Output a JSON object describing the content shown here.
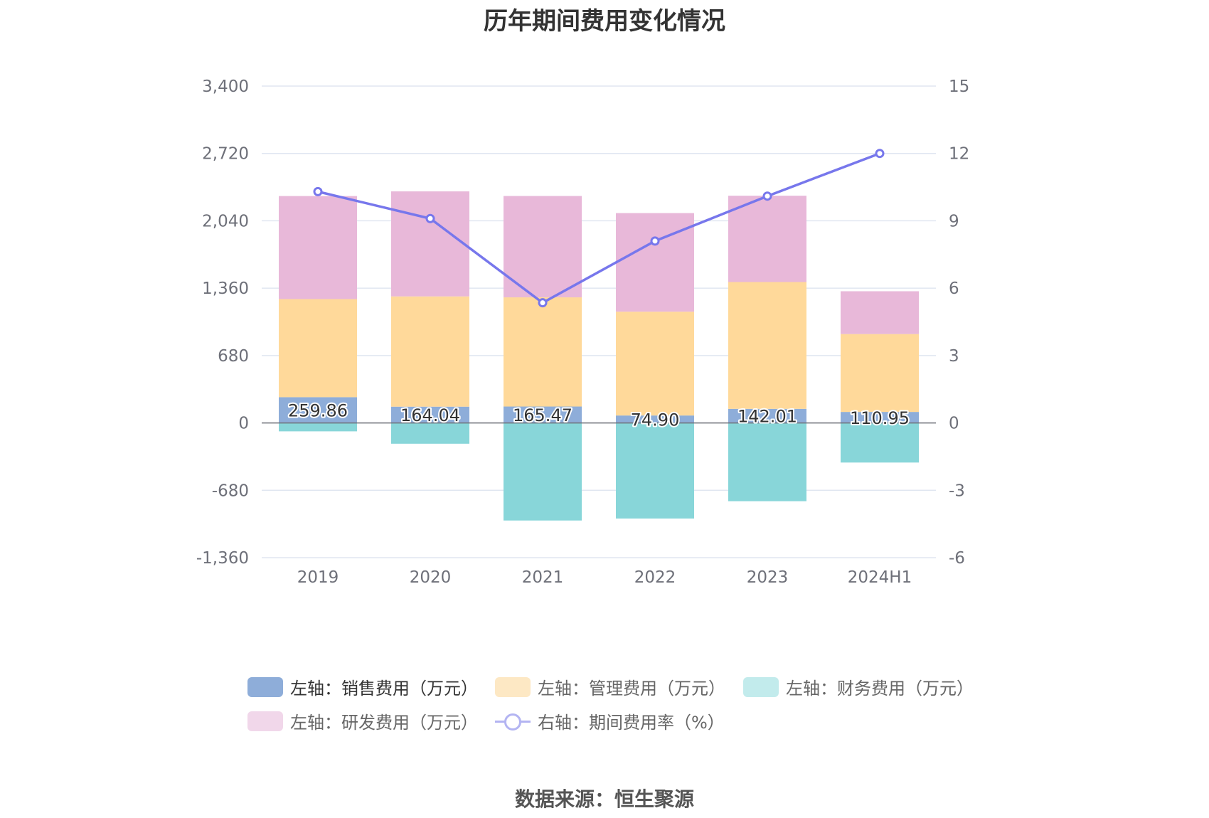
{
  "title": "历年期间费用变化情况",
  "source_text": "数据来源：恒生聚源",
  "chart_data": {
    "type": "bar",
    "categories": [
      "2019",
      "2020",
      "2021",
      "2022",
      "2023",
      "2024H1"
    ],
    "y_left": {
      "min": -1360,
      "max": 3400,
      "ticks": [
        -1360,
        -680,
        0,
        680,
        1360,
        2040,
        2720,
        3400
      ],
      "tick_labels": [
        "-1,360",
        "-680",
        "0",
        "680",
        "1,360",
        "2,040",
        "2,720",
        "3,400"
      ]
    },
    "y_right": {
      "min": -6,
      "max": 15,
      "ticks": [
        -6,
        -3,
        0,
        3,
        6,
        9,
        12,
        15
      ],
      "tick_labels": [
        "-6",
        "-3",
        "0",
        "3",
        "6",
        "9",
        "12",
        "15"
      ]
    },
    "grid": true,
    "legend_position": "bottom",
    "series": [
      {
        "name": "左轴：销售费用（万元）",
        "axis": "left",
        "kind": "bar",
        "color": "#8eadd9",
        "values": [
          259.86,
          164.04,
          165.47,
          74.9,
          142.01,
          110.95
        ],
        "labels": [
          "259.86",
          "164.04",
          "165.47",
          "74.90",
          "142.01",
          "110.95"
        ]
      },
      {
        "name": "左轴：管理费用（万元）",
        "axis": "left",
        "kind": "bar",
        "color": "#ffd99a",
        "values": [
          990,
          1113,
          1102,
          1048,
          1280,
          786
        ]
      },
      {
        "name": "左轴：财务费用（万元）",
        "axis": "left",
        "kind": "bar",
        "color": "#88d6d9",
        "values": [
          -85,
          -210,
          -985,
          -965,
          -790,
          -400
        ]
      },
      {
        "name": "左轴：研发费用（万元）",
        "axis": "left",
        "kind": "bar",
        "color": "#e8b8d9",
        "values": [
          1040,
          1060,
          1023,
          995,
          871,
          432
        ]
      },
      {
        "name": "右轴：期间费用率（%）",
        "axis": "right",
        "kind": "line",
        "color": "#7777ec",
        "values": [
          10.3,
          9.1,
          5.35,
          8.1,
          10.1,
          12.0
        ]
      }
    ]
  },
  "legend": {
    "items": [
      {
        "label": "左轴：销售费用（万元）",
        "color": "#8eadd9",
        "kind": "swatch",
        "dark": true
      },
      {
        "label": "左轴：管理费用（万元）",
        "color": "#fde8c4",
        "kind": "swatch",
        "dark": false
      },
      {
        "label": "左轴：财务费用（万元）",
        "color": "#c2ebec",
        "kind": "swatch",
        "dark": false
      },
      {
        "label": "左轴：研发费用（万元）",
        "color": "#f1d7ea",
        "kind": "swatch",
        "dark": false
      },
      {
        "label": "右轴：期间费用率（%）",
        "color": "#b3b4f2",
        "kind": "line",
        "dark": false
      }
    ]
  }
}
